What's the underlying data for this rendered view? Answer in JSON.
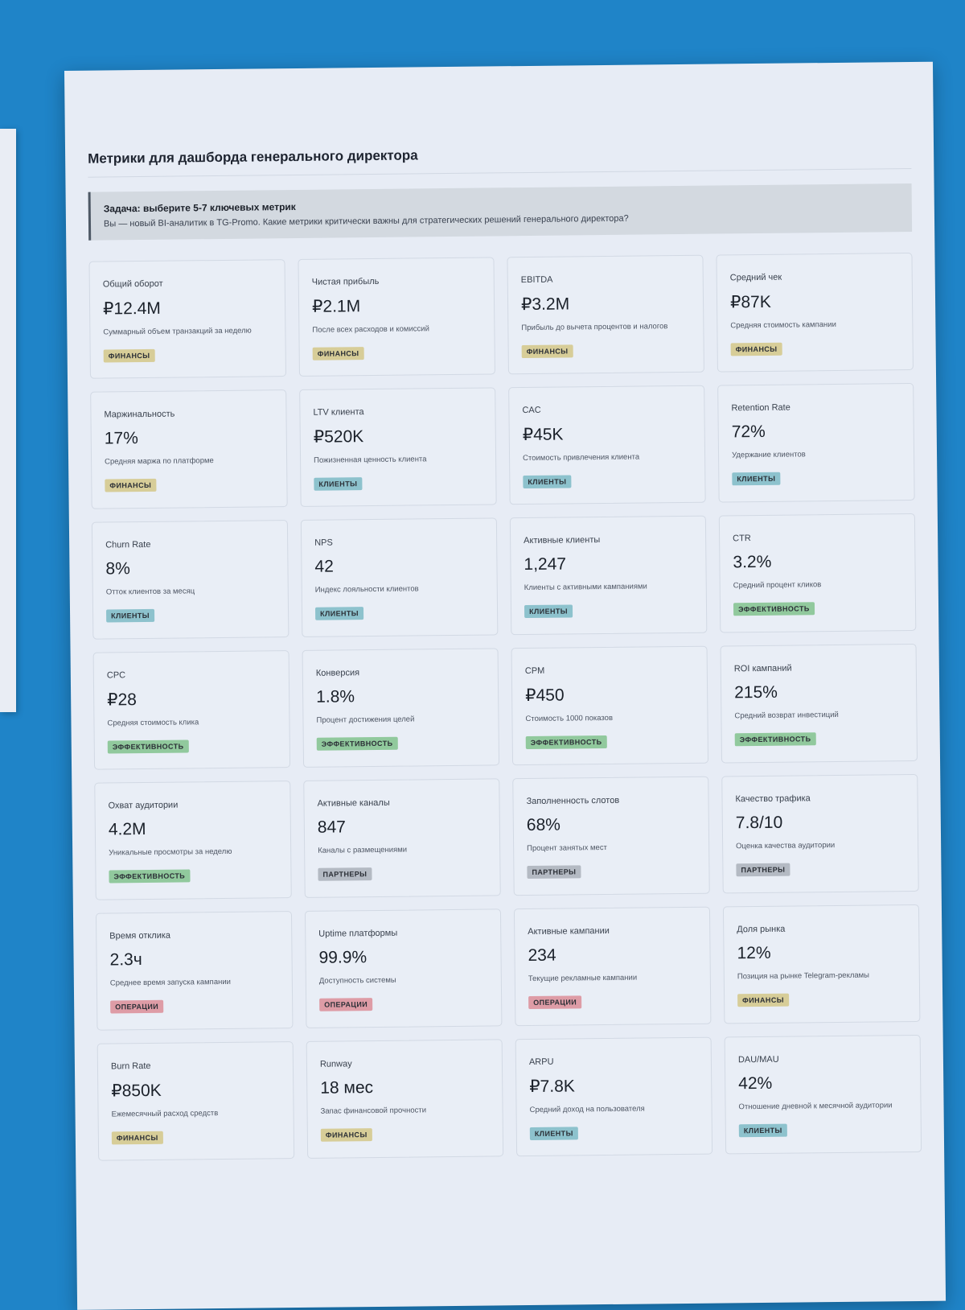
{
  "page": {
    "title": "Метрики для дашборда генерального директора"
  },
  "task": {
    "title": "Задача: выберите 5-7 ключевых метрик",
    "text": "Вы — новый BI-аналитик в TG-Promo. Какие метрики критически важны для стратегических решений генерального директора?"
  },
  "badges": {
    "finance": "ФИНАНСЫ",
    "clients": "КЛИЕНТЫ",
    "efficiency": "ЭФФЕКТИВНОСТЬ",
    "partners": "ПАРТНЕРЫ",
    "operations": "ОПЕРАЦИИ"
  },
  "colors": {
    "background": "#1f84c8",
    "finance": "#d7cd98",
    "clients": "#8dc2cd",
    "efficiency": "#91c99d",
    "partners": "#b4bac3",
    "operations": "#de9ca6"
  },
  "metrics": [
    {
      "label": "Общий оборот",
      "value": "₽12.4M",
      "desc": "Суммарный объем транзакций за неделю",
      "category": "ФИНАНСЫ"
    },
    {
      "label": "Чистая прибыль",
      "value": "₽2.1M",
      "desc": "После всех расходов и комиссий",
      "category": "ФИНАНСЫ"
    },
    {
      "label": "EBITDA",
      "value": "₽3.2M",
      "desc": "Прибыль до вычета процентов и налогов",
      "category": "ФИНАНСЫ"
    },
    {
      "label": "Средний чек",
      "value": "₽87K",
      "desc": "Средняя стоимость кампании",
      "category": "ФИНАНСЫ"
    },
    {
      "label": "Маржинальность",
      "value": "17%",
      "desc": "Средняя маржа по платформе",
      "category": "ФИНАНСЫ"
    },
    {
      "label": "LTV клиента",
      "value": "₽520K",
      "desc": "Пожизненная ценность клиента",
      "category": "КЛИЕНТЫ"
    },
    {
      "label": "CAC",
      "value": "₽45K",
      "desc": "Стоимость привлечения клиента",
      "category": "КЛИЕНТЫ"
    },
    {
      "label": "Retention Rate",
      "value": "72%",
      "desc": "Удержание клиентов",
      "category": "КЛИЕНТЫ"
    },
    {
      "label": "Churn Rate",
      "value": "8%",
      "desc": "Отток клиентов за месяц",
      "category": "КЛИЕНТЫ"
    },
    {
      "label": "NPS",
      "value": "42",
      "desc": "Индекс лояльности клиентов",
      "category": "КЛИЕНТЫ"
    },
    {
      "label": "Активные клиенты",
      "value": "1,247",
      "desc": "Клиенты с активными кампаниями",
      "category": "КЛИЕНТЫ"
    },
    {
      "label": "CTR",
      "value": "3.2%",
      "desc": "Средний процент кликов",
      "category": "ЭФФЕКТИВНОСТЬ"
    },
    {
      "label": "CPC",
      "value": "₽28",
      "desc": "Средняя стоимость клика",
      "category": "ЭФФЕКТИВНОСТЬ"
    },
    {
      "label": "Конверсия",
      "value": "1.8%",
      "desc": "Процент достижения целей",
      "category": "ЭФФЕКТИВНОСТЬ"
    },
    {
      "label": "CPM",
      "value": "₽450",
      "desc": "Стоимость 1000 показов",
      "category": "ЭФФЕКТИВНОСТЬ"
    },
    {
      "label": "ROI кампаний",
      "value": "215%",
      "desc": "Средний возврат инвестиций",
      "category": "ЭФФЕКТИВНОСТЬ"
    },
    {
      "label": "Охват аудитории",
      "value": "4.2M",
      "desc": "Уникальные просмотры за неделю",
      "category": "ЭФФЕКТИВНОСТЬ"
    },
    {
      "label": "Активные каналы",
      "value": "847",
      "desc": "Каналы с размещениями",
      "category": "ПАРТНЕРЫ"
    },
    {
      "label": "Заполненность слотов",
      "value": "68%",
      "desc": "Процент занятых мест",
      "category": "ПАРТНЕРЫ"
    },
    {
      "label": "Качество трафика",
      "value": "7.8/10",
      "desc": "Оценка качества аудитории",
      "category": "ПАРТНЕРЫ"
    },
    {
      "label": "Время отклика",
      "value": "2.3ч",
      "desc": "Среднее время запуска кампании",
      "category": "ОПЕРАЦИИ"
    },
    {
      "label": "Uptime платформы",
      "value": "99.9%",
      "desc": "Доступность системы",
      "category": "ОПЕРАЦИИ"
    },
    {
      "label": "Активные кампании",
      "value": "234",
      "desc": "Текущие рекламные кампании",
      "category": "ОПЕРАЦИИ"
    },
    {
      "label": "Доля рынка",
      "value": "12%",
      "desc": "Позиция на рынке Telegram-рекламы",
      "category": "ФИНАНСЫ"
    },
    {
      "label": "Burn Rate",
      "value": "₽850K",
      "desc": "Ежемесячный расход средств",
      "category": "ФИНАНСЫ"
    },
    {
      "label": "Runway",
      "value": "18 мес",
      "desc": "Запас финансовой прочности",
      "category": "ФИНАНСЫ"
    },
    {
      "label": "ARPU",
      "value": "₽7.8K",
      "desc": "Средний доход на пользователя",
      "category": "КЛИЕНТЫ"
    },
    {
      "label": "DAU/MAU",
      "value": "42%",
      "desc": "Отношение дневной к месячной аудитории",
      "category": "КЛИЕНТЫ"
    }
  ]
}
